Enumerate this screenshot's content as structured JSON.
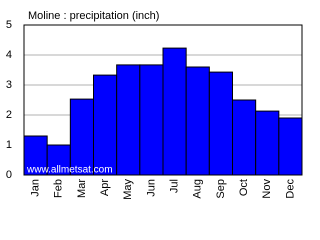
{
  "chart_data": {
    "type": "bar",
    "title": "Moline : precipitation (inch)",
    "watermark": "www.allmetsat.com",
    "categories": [
      "Jan",
      "Feb",
      "Mar",
      "Apr",
      "May",
      "Jun",
      "Jul",
      "Aug",
      "Sep",
      "Oct",
      "Nov",
      "Dec"
    ],
    "values": [
      1.3,
      1.0,
      2.53,
      3.33,
      3.67,
      3.67,
      4.23,
      3.6,
      3.43,
      2.5,
      2.13,
      1.9
    ],
    "color": "#0000ff",
    "ylim": [
      0,
      5
    ],
    "yticks": [
      0,
      1,
      2,
      3,
      4,
      5
    ],
    "grid": true
  }
}
